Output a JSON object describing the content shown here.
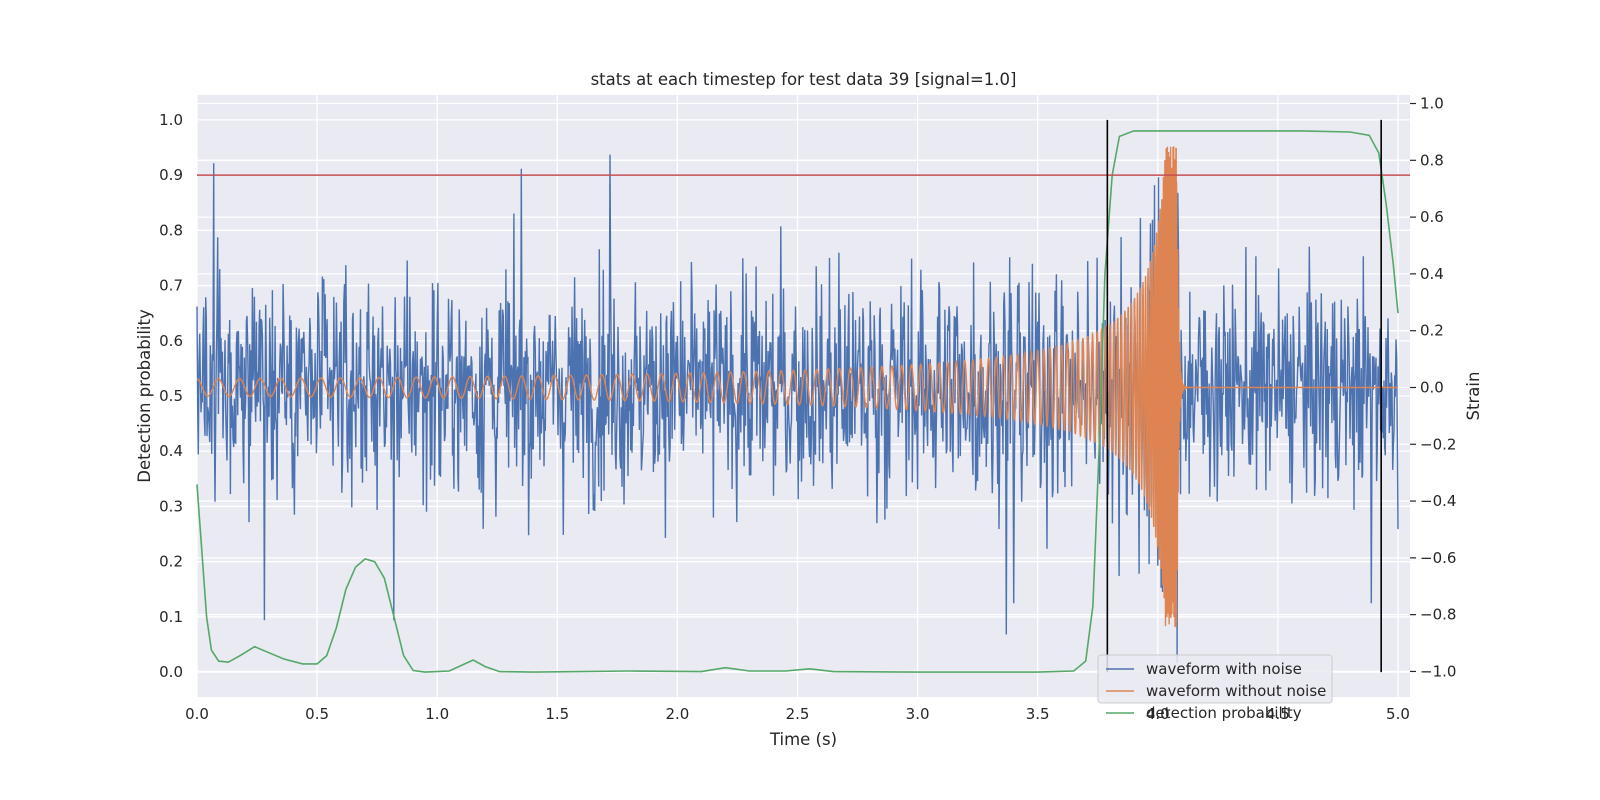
{
  "chart_data": {
    "type": "line",
    "title": "stats at each timestep for test data 39 [signal=1.0]",
    "xlabel": "Time (s)",
    "ylabel": "Detection probability",
    "ylabel_right": "Strain",
    "xlim": [
      0.0,
      5.05
    ],
    "ylim": [
      -0.045,
      1.045
    ],
    "ylim_right": [
      -1.09,
      1.03
    ],
    "x_ticks": [
      "0.0",
      "0.5",
      "1.0",
      "1.5",
      "2.0",
      "2.5",
      "3.0",
      "3.5",
      "4.0",
      "4.5",
      "5.0"
    ],
    "y_ticks": [
      "0.0",
      "0.1",
      "0.2",
      "0.3",
      "0.4",
      "0.5",
      "0.6",
      "0.7",
      "0.8",
      "0.9",
      "1.0"
    ],
    "y_right_ticks": [
      "−1.0",
      "−0.8",
      "−0.6",
      "−0.4",
      "−0.2",
      "0.0",
      "0.2",
      "0.4",
      "0.6",
      "0.8",
      "1.0"
    ],
    "grid": true,
    "legend_position": "bottom-right",
    "threshold": {
      "y": 0.9,
      "color": "#c44e52"
    },
    "vertical_markers": [
      {
        "x": 3.79,
        "y_range": [
          0.0,
          1.0
        ],
        "color": "#000000"
      },
      {
        "x": 4.93,
        "y_range": [
          0.0,
          1.0
        ],
        "color": "#000000"
      }
    ],
    "series": [
      {
        "name": "waveform with noise",
        "axis": "right",
        "color": "#4c72b0",
        "kind": "noise",
        "std": 0.185,
        "extremes": [
          {
            "x": 0.07,
            "y": 0.79
          },
          {
            "x": 0.28,
            "y": -0.82
          },
          {
            "x": 0.82,
            "y": -0.82
          },
          {
            "x": 1.35,
            "y": 0.77
          },
          {
            "x": 1.72,
            "y": 0.82
          },
          {
            "x": 3.37,
            "y": -0.87
          },
          {
            "x": 3.4,
            "y": -0.76
          },
          {
            "x": 4.08,
            "y": 0.97
          },
          {
            "x": 4.08,
            "y": -0.97
          },
          {
            "x": 4.02,
            "y": -0.72
          },
          {
            "x": 4.89,
            "y": -0.76
          }
        ]
      },
      {
        "name": "waveform without noise",
        "axis": "right",
        "color": "#dd8452",
        "kind": "chirp",
        "merger_time": 4.08,
        "amplitude_start": 0.03,
        "amplitude_peak": 0.85,
        "ringdown_end": 4.12
      },
      {
        "name": "detection probability",
        "axis": "left",
        "color": "#55a868",
        "points": [
          [
            0.0,
            0.34
          ],
          [
            0.02,
            0.22
          ],
          [
            0.04,
            0.1
          ],
          [
            0.06,
            0.04
          ],
          [
            0.09,
            0.02
          ],
          [
            0.13,
            0.018
          ],
          [
            0.18,
            0.03
          ],
          [
            0.24,
            0.046
          ],
          [
            0.3,
            0.035
          ],
          [
            0.36,
            0.024
          ],
          [
            0.44,
            0.015
          ],
          [
            0.5,
            0.015
          ],
          [
            0.54,
            0.03
          ],
          [
            0.58,
            0.08
          ],
          [
            0.62,
            0.15
          ],
          [
            0.66,
            0.19
          ],
          [
            0.7,
            0.205
          ],
          [
            0.74,
            0.2
          ],
          [
            0.78,
            0.17
          ],
          [
            0.82,
            0.1
          ],
          [
            0.86,
            0.03
          ],
          [
            0.9,
            0.003
          ],
          [
            0.95,
            0.0
          ],
          [
            1.05,
            0.002
          ],
          [
            1.1,
            0.012
          ],
          [
            1.15,
            0.022
          ],
          [
            1.2,
            0.01
          ],
          [
            1.26,
            0.001
          ],
          [
            1.4,
            0.0
          ],
          [
            1.8,
            0.002
          ],
          [
            2.1,
            0.001
          ],
          [
            2.2,
            0.008
          ],
          [
            2.3,
            0.002
          ],
          [
            2.45,
            0.002
          ],
          [
            2.55,
            0.006
          ],
          [
            2.65,
            0.001
          ],
          [
            3.0,
            0.0
          ],
          [
            3.5,
            0.0
          ],
          [
            3.65,
            0.002
          ],
          [
            3.7,
            0.02
          ],
          [
            3.73,
            0.12
          ],
          [
            3.76,
            0.45
          ],
          [
            3.78,
            0.72
          ],
          [
            3.81,
            0.9
          ],
          [
            3.84,
            0.97
          ],
          [
            3.9,
            0.98
          ],
          [
            4.2,
            0.98
          ],
          [
            4.6,
            0.98
          ],
          [
            4.8,
            0.978
          ],
          [
            4.88,
            0.972
          ],
          [
            4.92,
            0.94
          ],
          [
            4.95,
            0.85
          ],
          [
            4.98,
            0.74
          ],
          [
            5.0,
            0.65
          ]
        ]
      }
    ]
  }
}
